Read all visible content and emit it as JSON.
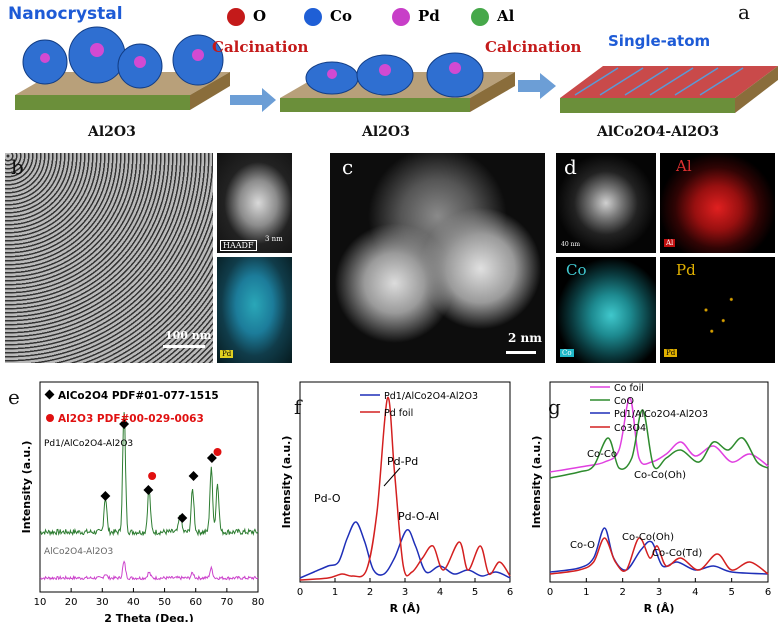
{
  "panel_a": {
    "letter": "a",
    "legend": [
      {
        "symbol": "O",
        "color": "#c41a1a"
      },
      {
        "symbol": "Co",
        "color": "#1f5fd6"
      },
      {
        "symbol": "Pd",
        "color": "#c83ec8"
      },
      {
        "symbol": "Al",
        "color": "#46a84a"
      }
    ],
    "nanocrystal_label": "Nanocrystal",
    "calcination_label_1": "Calcination",
    "calcination_label_2": "Calcination",
    "single_atom_label": "Single-atom",
    "support_label_1": "Al2O3",
    "support_label_2": "Al2O3",
    "support_label_3": "AlCo2O4-Al2O3"
  },
  "panel_b": {
    "letter": "b",
    "scale": "100 nm",
    "haadf": "HAADF",
    "inset_scale": "3 nm",
    "map_tag": "Pd"
  },
  "panel_c": {
    "letter": "c",
    "scale": "2 nm"
  },
  "panel_d": {
    "letter": "d",
    "small_scale": "40 nm",
    "al": "Al",
    "co": "Co",
    "pd": "Pd",
    "al_tag": "Al",
    "co_tag": "Co",
    "pd_tag": "Pd"
  },
  "chart_data": [
    {
      "type": "line",
      "panel": "e",
      "xlabel": "2 Theta (Deg.)",
      "ylabel": "Intensity (a.u.)",
      "xlim": [
        10,
        80
      ],
      "xticks": [
        10,
        20,
        30,
        40,
        50,
        60,
        70,
        80
      ],
      "legend": [
        {
          "marker": "diamond",
          "text": "AlCo2O4 PDF#01-077-1515"
        },
        {
          "marker": "circle",
          "text": "Al2O3 PDF#00-029-0063"
        }
      ],
      "series": [
        {
          "name": "Pd1/AlCo2O4-Al2O3",
          "color": "#2e7d32",
          "peaks": [
            [
              31,
              0.25
            ],
            [
              37,
              0.85
            ],
            [
              45,
              0.3
            ],
            [
              55,
              0.12
            ],
            [
              59,
              0.3
            ],
            [
              65,
              0.45
            ],
            [
              67,
              0.35
            ]
          ]
        },
        {
          "name": "AlCo2O4-Al2O3",
          "color": "#cc44cc",
          "peaks": [
            [
              31,
              0.05
            ],
            [
              37,
              0.2
            ],
            [
              45,
              0.07
            ],
            [
              59,
              0.06
            ],
            [
              65,
              0.12
            ]
          ]
        }
      ],
      "diamond_markers": [
        31,
        37,
        44.8,
        55.7,
        59.3,
        65.2
      ],
      "circle_markers": [
        46,
        67
      ]
    },
    {
      "type": "line",
      "panel": "f",
      "xlabel": "R (Å)",
      "ylabel": "Intensity (a.u.)",
      "xlim": [
        0,
        6
      ],
      "xticks": [
        0,
        1,
        2,
        3,
        4,
        5,
        6
      ],
      "series": [
        {
          "name": "Pd1/AlCo2O4-Al2O3",
          "color": "#1f2fb8",
          "points": [
            [
              0,
              0.02
            ],
            [
              0.4,
              0.05
            ],
            [
              0.8,
              0.08
            ],
            [
              1.1,
              0.1
            ],
            [
              1.35,
              0.22
            ],
            [
              1.6,
              0.3
            ],
            [
              1.85,
              0.2
            ],
            [
              2.1,
              0.06
            ],
            [
              2.4,
              0.04
            ],
            [
              2.7,
              0.12
            ],
            [
              3.05,
              0.26
            ],
            [
              3.3,
              0.18
            ],
            [
              3.6,
              0.05
            ],
            [
              4,
              0.08
            ],
            [
              4.4,
              0.04
            ],
            [
              4.8,
              0.06
            ],
            [
              5.2,
              0.03
            ],
            [
              5.6,
              0.05
            ],
            [
              6,
              0.02
            ]
          ]
        },
        {
          "name": "Pd foil",
          "color": "#d42020",
          "points": [
            [
              0,
              0.01
            ],
            [
              0.8,
              0.02
            ],
            [
              1.2,
              0.04
            ],
            [
              1.5,
              0.03
            ],
            [
              1.9,
              0.06
            ],
            [
              2.2,
              0.35
            ],
            [
              2.5,
              0.92
            ],
            [
              2.7,
              0.55
            ],
            [
              2.95,
              0.08
            ],
            [
              3.2,
              0.05
            ],
            [
              3.5,
              0.12
            ],
            [
              3.8,
              0.18
            ],
            [
              4.1,
              0.06
            ],
            [
              4.55,
              0.2
            ],
            [
              4.8,
              0.06
            ],
            [
              5.15,
              0.18
            ],
            [
              5.4,
              0.04
            ],
            [
              5.7,
              0.1
            ],
            [
              6,
              0.03
            ]
          ]
        }
      ],
      "annotations": [
        "Pd-O",
        "Pd-Pd",
        "Pd-O-Al"
      ]
    },
    {
      "type": "line",
      "panel": "g",
      "xlabel": "R (Å)",
      "ylabel": "Intensity (a.u.)",
      "xlim": [
        0,
        6
      ],
      "xticks": [
        0,
        1,
        2,
        3,
        4,
        5,
        6
      ],
      "series": [
        {
          "name": "Co foil",
          "color": "#e040e0",
          "points": [
            [
              0,
              0.55
            ],
            [
              1,
              0.58
            ],
            [
              1.5,
              0.6
            ],
            [
              1.9,
              0.66
            ],
            [
              2.2,
              0.92
            ],
            [
              2.45,
              0.62
            ],
            [
              2.8,
              0.6
            ],
            [
              3.2,
              0.64
            ],
            [
              3.6,
              0.7
            ],
            [
              4,
              0.63
            ],
            [
              4.5,
              0.68
            ],
            [
              5,
              0.6
            ],
            [
              5.5,
              0.64
            ],
            [
              6,
              0.58
            ]
          ]
        },
        {
          "name": "CoO",
          "color": "#2e8b2e",
          "points": [
            [
              0,
              0.52
            ],
            [
              0.8,
              0.55
            ],
            [
              1.2,
              0.58
            ],
            [
              1.6,
              0.72
            ],
            [
              1.9,
              0.57
            ],
            [
              2.25,
              0.62
            ],
            [
              2.55,
              0.86
            ],
            [
              2.85,
              0.58
            ],
            [
              3.2,
              0.62
            ],
            [
              3.6,
              0.66
            ],
            [
              4.1,
              0.6
            ],
            [
              4.5,
              0.7
            ],
            [
              4.9,
              0.66
            ],
            [
              5.3,
              0.72
            ],
            [
              5.7,
              0.6
            ],
            [
              6,
              0.57
            ]
          ]
        },
        {
          "name": "Pd1/AlCo2O4-Al2O3",
          "color": "#1f2fb8",
          "points": [
            [
              0,
              0.05
            ],
            [
              0.8,
              0.07
            ],
            [
              1.2,
              0.12
            ],
            [
              1.5,
              0.27
            ],
            [
              1.75,
              0.12
            ],
            [
              2.1,
              0.06
            ],
            [
              2.5,
              0.16
            ],
            [
              2.8,
              0.2
            ],
            [
              3.1,
              0.08
            ],
            [
              3.5,
              0.1
            ],
            [
              4,
              0.06
            ],
            [
              4.5,
              0.08
            ],
            [
              5,
              0.05
            ],
            [
              6,
              0.04
            ]
          ]
        },
        {
          "name": "Co3O4",
          "color": "#d42020",
          "points": [
            [
              0,
              0.04
            ],
            [
              0.8,
              0.06
            ],
            [
              1.2,
              0.1
            ],
            [
              1.5,
              0.22
            ],
            [
              1.8,
              0.1
            ],
            [
              2.1,
              0.06
            ],
            [
              2.45,
              0.22
            ],
            [
              2.75,
              0.12
            ],
            [
              2.95,
              0.18
            ],
            [
              3.2,
              0.08
            ],
            [
              3.6,
              0.12
            ],
            [
              4.1,
              0.06
            ],
            [
              4.6,
              0.14
            ],
            [
              5,
              0.06
            ],
            [
              5.5,
              0.1
            ],
            [
              6,
              0.04
            ]
          ]
        }
      ],
      "annotations": [
        "Co-Co",
        "Co-Co(Oh)",
        "Co-O",
        "Co-Co(Oh)",
        "Co-Co(Td)"
      ]
    }
  ],
  "panel_e": {
    "letter": "e",
    "curve1": "Pd1/AlCo2O4-Al2O3",
    "curve2": "AlCo2O4-Al2O3"
  },
  "panel_f": {
    "letter": "f"
  },
  "panel_g": {
    "letter": "g"
  }
}
